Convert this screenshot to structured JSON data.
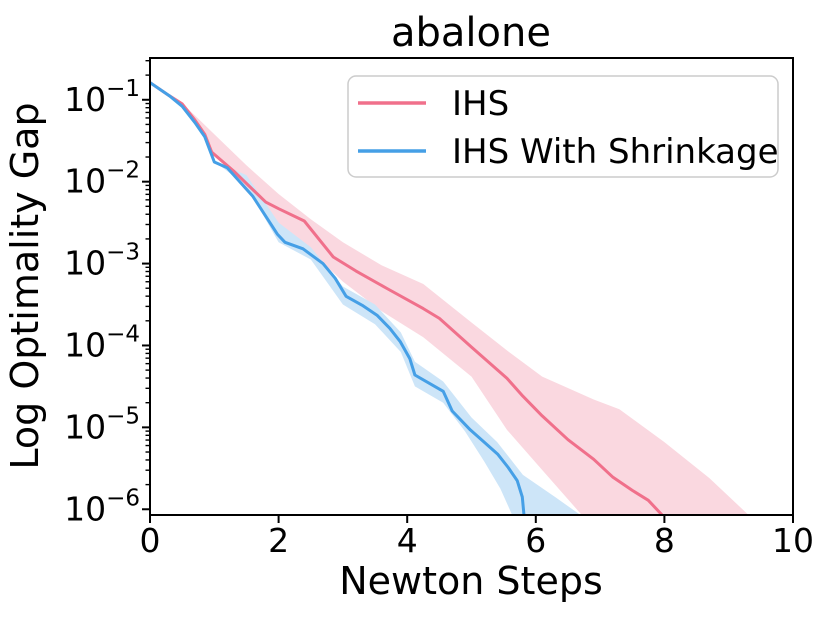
{
  "chart_data": {
    "type": "line",
    "title": "abalone",
    "xlabel": "Newton Steps",
    "ylabel": "Log Optimality Gap",
    "x_ticks": [
      0,
      2,
      4,
      6,
      8,
      10
    ],
    "y_tick_exponents": [
      -1,
      -2,
      -3,
      -4,
      -5,
      -6
    ],
    "xlim": [
      0,
      10
    ],
    "y_scale": "log10",
    "ylim_log10": [
      -6.07,
      -0.49
    ],
    "grid": "off",
    "legend_position": "upper right",
    "axis_color": "#000000",
    "series": [
      {
        "name": "IHS",
        "color": "#f0708b",
        "band_color": "#fad8e0",
        "points_x_log10y": [
          [
            0,
            -0.79
          ],
          [
            0.3,
            -0.95
          ],
          [
            0.5,
            -1.05
          ],
          [
            0.7,
            -1.25
          ],
          [
            0.85,
            -1.42
          ],
          [
            0.96,
            -1.64
          ],
          [
            1.3,
            -1.87
          ],
          [
            1.8,
            -2.25
          ],
          [
            2.0,
            -2.33
          ],
          [
            2.4,
            -2.48
          ],
          [
            2.85,
            -2.92
          ],
          [
            3.2,
            -3.09
          ],
          [
            3.7,
            -3.31
          ],
          [
            4.25,
            -3.55
          ],
          [
            4.5,
            -3.67
          ],
          [
            5.0,
            -4.02
          ],
          [
            5.55,
            -4.4
          ],
          [
            5.8,
            -4.62
          ],
          [
            6.1,
            -4.86
          ],
          [
            6.5,
            -5.15
          ],
          [
            6.9,
            -5.39
          ],
          [
            7.2,
            -5.61
          ],
          [
            7.5,
            -5.77
          ],
          [
            7.75,
            -5.89
          ],
          [
            8.0,
            -6.1
          ]
        ],
        "band_upper_x_log10y": [
          [
            0.55,
            -1.08
          ],
          [
            1.0,
            -1.42
          ],
          [
            1.5,
            -1.8
          ],
          [
            2.0,
            -2.15
          ],
          [
            2.5,
            -2.46
          ],
          [
            3.0,
            -2.74
          ],
          [
            3.6,
            -3.02
          ],
          [
            4.25,
            -3.25
          ],
          [
            5.0,
            -3.72
          ],
          [
            5.55,
            -4.06
          ],
          [
            6.1,
            -4.38
          ],
          [
            6.9,
            -4.66
          ],
          [
            7.3,
            -4.78
          ],
          [
            8.0,
            -5.18
          ],
          [
            8.7,
            -5.62
          ],
          [
            9.35,
            -6.1
          ]
        ],
        "band_lower_x_log10y": [
          [
            0.55,
            -1.08
          ],
          [
            1.0,
            -1.66
          ],
          [
            1.5,
            -2.12
          ],
          [
            2.0,
            -2.52
          ],
          [
            2.5,
            -2.85
          ],
          [
            3.0,
            -3.22
          ],
          [
            3.6,
            -3.58
          ],
          [
            4.25,
            -3.9
          ],
          [
            5.0,
            -4.38
          ],
          [
            5.55,
            -5.03
          ],
          [
            6.1,
            -5.52
          ],
          [
            6.75,
            -6.1
          ]
        ]
      },
      {
        "name": "IHS With Shrinkage",
        "color": "#459fe6",
        "band_color": "#cde5f8",
        "points_x_log10y": [
          [
            0,
            -0.79
          ],
          [
            0.3,
            -0.95
          ],
          [
            0.5,
            -1.08
          ],
          [
            0.7,
            -1.28
          ],
          [
            0.85,
            -1.45
          ],
          [
            1.0,
            -1.76
          ],
          [
            1.2,
            -1.83
          ],
          [
            1.6,
            -2.18
          ],
          [
            1.98,
            -2.64
          ],
          [
            2.1,
            -2.74
          ],
          [
            2.38,
            -2.82
          ],
          [
            2.69,
            -3.0
          ],
          [
            2.88,
            -3.18
          ],
          [
            3.05,
            -3.4
          ],
          [
            3.3,
            -3.51
          ],
          [
            3.53,
            -3.63
          ],
          [
            3.73,
            -3.79
          ],
          [
            3.89,
            -3.95
          ],
          [
            4.04,
            -4.16
          ],
          [
            4.12,
            -4.36
          ],
          [
            4.56,
            -4.56
          ],
          [
            4.7,
            -4.8
          ],
          [
            4.98,
            -5.03
          ],
          [
            5.21,
            -5.19
          ],
          [
            5.41,
            -5.33
          ],
          [
            5.57,
            -5.49
          ],
          [
            5.71,
            -5.65
          ],
          [
            5.79,
            -5.85
          ],
          [
            5.82,
            -6.1
          ]
        ],
        "band_upper_x_log10y": [
          [
            0.98,
            -1.74
          ],
          [
            1.5,
            -1.92
          ],
          [
            2.0,
            -2.5
          ],
          [
            2.5,
            -2.8
          ],
          [
            3.0,
            -3.28
          ],
          [
            3.5,
            -3.5
          ],
          [
            3.9,
            -3.84
          ],
          [
            4.12,
            -4.2
          ],
          [
            4.56,
            -4.44
          ],
          [
            5.0,
            -4.88
          ],
          [
            5.4,
            -5.18
          ],
          [
            5.8,
            -5.58
          ],
          [
            6.3,
            -5.85
          ],
          [
            6.75,
            -6.1
          ]
        ],
        "band_lower_x_log10y": [
          [
            0.98,
            -1.74
          ],
          [
            1.5,
            -2.05
          ],
          [
            2.0,
            -2.74
          ],
          [
            2.5,
            -2.95
          ],
          [
            3.0,
            -3.5
          ],
          [
            3.5,
            -3.74
          ],
          [
            3.9,
            -4.08
          ],
          [
            4.12,
            -4.5
          ],
          [
            4.56,
            -4.7
          ],
          [
            4.9,
            -5.05
          ],
          [
            5.2,
            -5.42
          ],
          [
            5.45,
            -5.75
          ],
          [
            5.65,
            -6.1
          ]
        ]
      }
    ]
  }
}
